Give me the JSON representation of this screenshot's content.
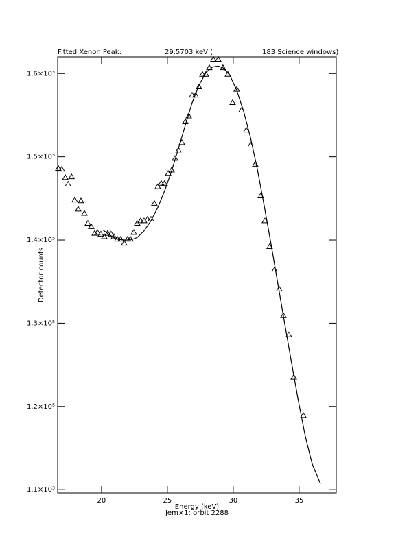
{
  "chart_data": {
    "type": "scatter",
    "title_parts": [
      "Fitted Xenon Peak:",
      "29.5703 keV (",
      "183 Science windows)"
    ],
    "x_label": "Energy (keV)",
    "x_sublabel": "Jem×1: orbit 2288",
    "y_label": "Detector counts",
    "xlim": [
      16.67,
      37.82
    ],
    "ylim": [
      109600,
      162000
    ],
    "xticks": [
      20,
      25,
      30,
      35
    ],
    "yticks": [
      {
        "value": 110000,
        "label": "1.1×10⁵"
      },
      {
        "value": 120000,
        "label": "1.2×10⁵"
      },
      {
        "value": 130000,
        "label": "1.3×10⁵"
      },
      {
        "value": 140000,
        "label": "1.4×10⁵"
      },
      {
        "value": 150000,
        "label": "1.5×10⁵"
      },
      {
        "value": 160000,
        "label": "1.6×10⁵"
      }
    ],
    "series": [
      {
        "type": "scatter",
        "marker": "triangle",
        "color": "#000000",
        "x": [
          16.72,
          16.98,
          17.25,
          17.46,
          17.72,
          17.97,
          18.23,
          18.44,
          18.7,
          18.96,
          19.22,
          19.48,
          19.69,
          19.95,
          20.21,
          20.47,
          20.73,
          20.94,
          21.2,
          21.46,
          21.72,
          21.98,
          22.19,
          22.45,
          22.71,
          22.97,
          23.23,
          23.49,
          23.75,
          24.01,
          24.27,
          24.53,
          24.79,
          25.06,
          25.32,
          25.58,
          25.84,
          26.1,
          26.36,
          26.62,
          26.88,
          27.14,
          27.4,
          27.66,
          27.92,
          28.18,
          28.49,
          28.86,
          29.22,
          29.59,
          29.95,
          30.26,
          30.63,
          30.99,
          31.31,
          31.67,
          32.09,
          32.4,
          32.76,
          33.13,
          33.49,
          33.81,
          34.22,
          34.59,
          35.32
        ],
        "values": [
          148600,
          148500,
          147500,
          146700,
          147600,
          144800,
          143700,
          144700,
          143200,
          142000,
          141600,
          140800,
          140900,
          140700,
          140400,
          140800,
          140700,
          140400,
          140100,
          140100,
          139600,
          140100,
          140100,
          140900,
          142000,
          142300,
          142300,
          142500,
          142500,
          144400,
          146400,
          146800,
          146800,
          148000,
          148400,
          149800,
          150800,
          151700,
          154200,
          154900,
          157400,
          157400,
          158400,
          159900,
          159900,
          160700,
          161700,
          161700,
          160700,
          159900,
          156500,
          158100,
          155600,
          153200,
          151400,
          149100,
          145300,
          142300,
          139200,
          136400,
          134100,
          130900,
          128600,
          123500,
          118900
        ]
      },
      {
        "type": "line",
        "color": "#000000",
        "x": [
          20.11,
          20.63,
          21.15,
          21.67,
          22.19,
          22.71,
          23.23,
          23.75,
          24.27,
          24.79,
          25.32,
          25.84,
          26.36,
          26.88,
          27.4,
          27.92,
          28.44,
          28.86,
          29.22,
          29.74,
          30.26,
          30.78,
          31.31,
          31.83,
          32.35,
          32.87,
          33.39,
          33.91,
          34.43,
          34.95,
          35.47,
          35.99,
          36.62
        ],
        "values": [
          141200,
          140600,
          140100,
          140000,
          140000,
          140300,
          141100,
          142300,
          143900,
          145900,
          148300,
          151000,
          153800,
          156500,
          158600,
          160100,
          160800,
          160900,
          160700,
          159800,
          158000,
          155500,
          152300,
          148500,
          144100,
          139500,
          134700,
          129900,
          125200,
          120600,
          116400,
          113100,
          110700
        ]
      }
    ]
  }
}
